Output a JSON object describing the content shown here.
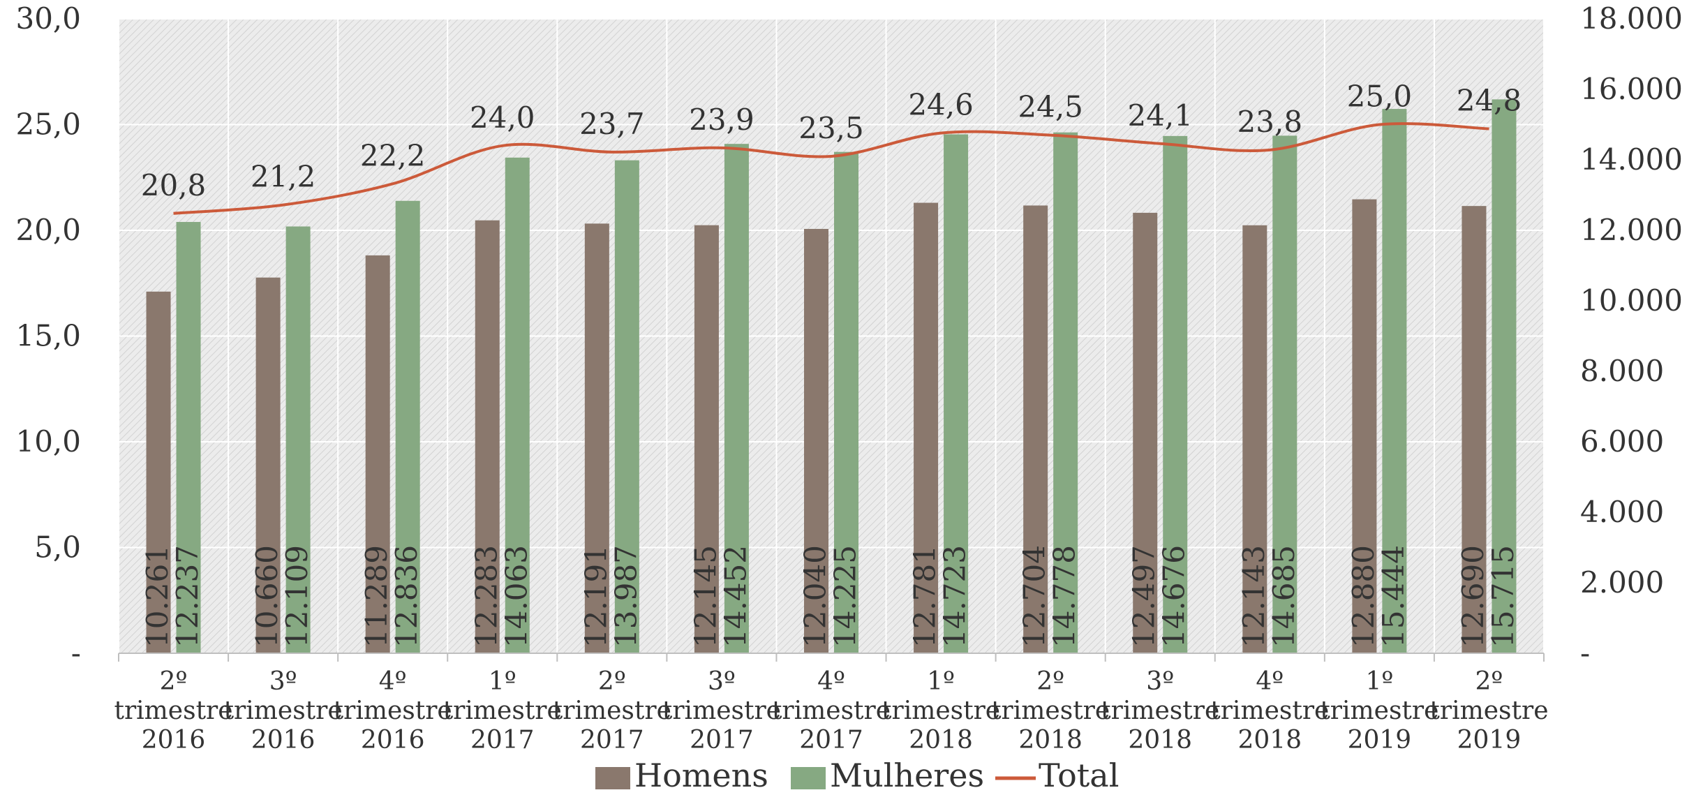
{
  "chart_data": {
    "type": "bar",
    "categories": [
      [
        "2º",
        "trimestre",
        "2016"
      ],
      [
        "3º",
        "trimestre",
        "2016"
      ],
      [
        "4º",
        "trimestre",
        "2016"
      ],
      [
        "1º",
        "trimestre",
        "2017"
      ],
      [
        "2º",
        "trimestre",
        "2017"
      ],
      [
        "3º",
        "trimestre",
        "2017"
      ],
      [
        "4º",
        "trimestre",
        "2017"
      ],
      [
        "1º",
        "trimestre",
        "2018"
      ],
      [
        "2º",
        "trimestre",
        "2018"
      ],
      [
        "3º",
        "trimestre",
        "2018"
      ],
      [
        "4º",
        "trimestre",
        "2018"
      ],
      [
        "1º",
        "trimestre",
        "2019"
      ],
      [
        "2º",
        "trimestre",
        "2019"
      ]
    ],
    "series": [
      {
        "name": "Homens",
        "type": "bar",
        "axis": "right",
        "color": "#8a786d",
        "values": [
          10261,
          10660,
          11289,
          12283,
          12191,
          12145,
          12040,
          12781,
          12704,
          12497,
          12143,
          12880,
          12690
        ],
        "labels": [
          "10.261",
          "10.660",
          "11.289",
          "12.283",
          "12.191",
          "12.145",
          "12.040",
          "12.781",
          "12.704",
          "12.497",
          "12.143",
          "12.880",
          "12.690"
        ]
      },
      {
        "name": "Mulheres",
        "type": "bar",
        "axis": "right",
        "color": "#86a982",
        "values": [
          12237,
          12109,
          12836,
          14063,
          13987,
          14452,
          14225,
          14723,
          14778,
          14676,
          14685,
          15444,
          15715
        ],
        "labels": [
          "12.237",
          "12.109",
          "12.836",
          "14.063",
          "13.987",
          "14.452",
          "14.225",
          "14.723",
          "14.778",
          "14.676",
          "14.685",
          "15.444",
          "15.715"
        ]
      },
      {
        "name": "Total",
        "type": "line",
        "axis": "left",
        "color": "#cc5a3a",
        "values": [
          20.8,
          21.2,
          22.2,
          24.0,
          23.7,
          23.9,
          23.5,
          24.6,
          24.5,
          24.1,
          23.8,
          25.0,
          24.8
        ],
        "labels": [
          "20,8",
          "21,2",
          "22,2",
          "24,0",
          "23,7",
          "23,9",
          "23,5",
          "24,6",
          "24,5",
          "24,1",
          "23,8",
          "25,0",
          "24,8"
        ]
      }
    ],
    "left_axis": {
      "ylim": [
        0,
        30
      ],
      "ticks": [
        0,
        5,
        10,
        15,
        20,
        25,
        30
      ],
      "tick_labels": [
        "-",
        "5,0",
        "10,0",
        "15,0",
        "20,0",
        "25,0",
        "30,0"
      ]
    },
    "right_axis": {
      "ylim": [
        0,
        18000
      ],
      "ticks": [
        0,
        2000,
        4000,
        6000,
        8000,
        10000,
        12000,
        14000,
        16000,
        18000
      ],
      "tick_labels": [
        "-",
        "2.000",
        "4.000",
        "6.000",
        "8.000",
        "10.000",
        "12.000",
        "14.000",
        "16.000",
        "18.000"
      ]
    },
    "legend": {
      "placement": "bottom-center",
      "entries": [
        "Homens",
        "Mulheres",
        "Total"
      ]
    },
    "grid": true,
    "plot_background": "hatched-light-gray",
    "title": "",
    "xlabel": "",
    "ylabel": ""
  }
}
